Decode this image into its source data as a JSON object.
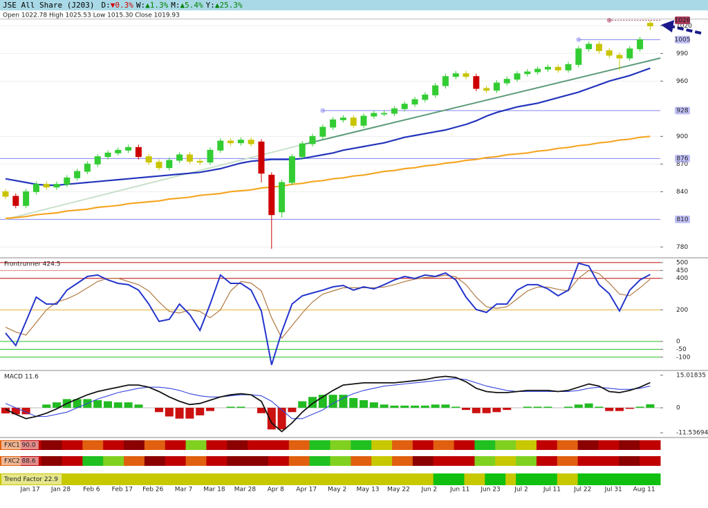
{
  "header": {
    "title": "JSE All Share (J203)",
    "stats": [
      {
        "label": "D:",
        "change": "▼0.3%",
        "color": "#d00000"
      },
      {
        "label": "W:",
        "change": "▲1.3%",
        "color": "#008000"
      },
      {
        "label": "M:",
        "change": "▲5.4%",
        "color": "#008000"
      },
      {
        "label": "Y:",
        "change": "▲25.3%",
        "color": "#008000"
      }
    ]
  },
  "chart_data": [
    {
      "type": "candlestick",
      "info": "Open 1022.78 High 1025.53 Low 1015.30 Close 1019.93",
      "categories": [
        null,
        null,
        "Jan 17",
        null,
        null,
        "Jan 28",
        null,
        null,
        "Feb 6",
        null,
        null,
        "Feb 17",
        null,
        null,
        "Feb 26",
        null,
        null,
        "Mar 7",
        null,
        null,
        "Mar 18",
        null,
        null,
        "Mar 28",
        null,
        null,
        "Apr 8",
        null,
        null,
        "Apr 17",
        null,
        null,
        "May 2",
        null,
        null,
        "May 13",
        null,
        null,
        "May 22",
        null,
        null,
        "Jun 2",
        null,
        null,
        "Jun 11",
        null,
        null,
        "Jun 23",
        null,
        null,
        "Jul 2",
        null,
        null,
        "Jul 11",
        null,
        null,
        "Jul 22",
        null,
        null,
        "Jul 31",
        null,
        null,
        "Aug 11",
        null
      ],
      "open": [
        840,
        835,
        825,
        840,
        848,
        845,
        848,
        855,
        862,
        870,
        878,
        882,
        885,
        888,
        878,
        872,
        866,
        874,
        880,
        873,
        872,
        885,
        895,
        893,
        896,
        894,
        858,
        818,
        850,
        878,
        892,
        900,
        910,
        918,
        920,
        912,
        922,
        925,
        925,
        930,
        935,
        940,
        945,
        955,
        965,
        968,
        965,
        952,
        950,
        958,
        962,
        968,
        970,
        973,
        975,
        972,
        978,
        995,
        1000,
        993,
        988,
        985,
        995,
        1022.78
      ],
      "high": [
        843,
        838,
        843,
        851,
        851,
        851,
        858,
        865,
        873,
        881,
        885,
        888,
        891,
        891,
        881,
        875,
        877,
        883,
        883,
        876,
        888,
        898,
        898,
        899,
        899,
        897,
        861,
        853,
        881,
        895,
        903,
        913,
        921,
        923,
        923,
        925,
        928,
        928,
        933,
        938,
        943,
        948,
        958,
        968,
        971,
        971,
        968,
        955,
        961,
        965,
        971,
        973,
        976,
        978,
        978,
        981,
        998,
        1003,
        1003,
        996,
        991,
        998,
        1008,
        1025.53
      ],
      "low": [
        832,
        822,
        822,
        837,
        842,
        842,
        845,
        852,
        859,
        867,
        875,
        879,
        882,
        875,
        869,
        863,
        863,
        871,
        870,
        869,
        869,
        882,
        890,
        890,
        889,
        850,
        778,
        812,
        847,
        875,
        889,
        897,
        907,
        915,
        909,
        909,
        919,
        922,
        922,
        927,
        932,
        937,
        942,
        952,
        962,
        962,
        949,
        947,
        947,
        955,
        959,
        965,
        967,
        970,
        969,
        969,
        975,
        992,
        990,
        985,
        972,
        982,
        992,
        1015.3
      ],
      "close": [
        835,
        825,
        840,
        848,
        845,
        848,
        855,
        862,
        870,
        878,
        882,
        885,
        888,
        878,
        872,
        866,
        874,
        880,
        873,
        872,
        885,
        895,
        893,
        896,
        892,
        860,
        815,
        850,
        878,
        892,
        900,
        910,
        918,
        920,
        912,
        922,
        925,
        925,
        930,
        935,
        940,
        945,
        955,
        965,
        968,
        965,
        952,
        950,
        958,
        962,
        968,
        970,
        973,
        975,
        972,
        978,
        995,
        1000,
        993,
        988,
        985,
        995,
        1005,
        1019.93
      ],
      "up_color": "#33cc33",
      "down_color": "#cc0000",
      "weak_color": "#c8c400",
      "series": [
        {
          "color": "#2233bb",
          "values": [
            854,
            852,
            850,
            848,
            847,
            847,
            848,
            849,
            850,
            851,
            852,
            853,
            854,
            855,
            856,
            857,
            858,
            859,
            860,
            861,
            863,
            865,
            868,
            871,
            873,
            874,
            875,
            875,
            875,
            876,
            878,
            880,
            882,
            885,
            887,
            889,
            891,
            893,
            896,
            899,
            901,
            903,
            905,
            907,
            910,
            913,
            917,
            922,
            926,
            929,
            932,
            934,
            936,
            939,
            942,
            945,
            948,
            952,
            956,
            960,
            963,
            966,
            970,
            974
          ]
        },
        {
          "color": "#f5a623",
          "values": [
            811,
            812,
            813,
            815,
            816,
            817,
            819,
            820,
            821,
            823,
            824,
            825,
            827,
            828,
            829,
            830,
            832,
            833,
            834,
            836,
            837,
            838,
            840,
            841,
            842,
            844,
            845,
            846,
            848,
            849,
            851,
            852,
            854,
            855,
            857,
            858,
            860,
            862,
            863,
            865,
            866,
            868,
            869,
            871,
            872,
            874,
            875,
            877,
            878,
            880,
            881,
            882,
            884,
            885,
            887,
            888,
            890,
            891,
            893,
            894,
            896,
            897,
            899,
            900
          ]
        }
      ],
      "trendlines": [
        {
          "x": [
            0,
            29
          ],
          "y": [
            810,
            891
          ],
          "color": "#c8e0c8"
        },
        {
          "x": [
            29,
            64
          ],
          "y": [
            891,
            985
          ],
          "color": "#5a9a78"
        }
      ],
      "levels": [
        {
          "value": 1026,
          "start": 59,
          "color": "#a8385a",
          "label_color": "#ffffff"
        },
        {
          "value": 1005,
          "start": 56,
          "color": "#8080f0",
          "label_color": "#202080"
        },
        {
          "value": 928,
          "start": 31,
          "color": "#8080f0",
          "label_color": "#202080"
        },
        {
          "value": 876,
          "color": "#8080f0",
          "label_color": "#202080"
        },
        {
          "value": 810,
          "color": "#8080f0",
          "label_color": "#202080"
        }
      ],
      "ylim": [
        769,
        1027
      ],
      "yticks": [
        780,
        840,
        870,
        900,
        960,
        990,
        1020
      ],
      "grid": true
    },
    {
      "type": "line",
      "title": "Frontrunner 424.5",
      "ylim": [
        -180,
        526
      ],
      "yticks": [
        500,
        450,
        400,
        200,
        0,
        -50,
        -100
      ],
      "tick_colors": [
        "#c00000",
        "#e08080",
        "#c00000",
        "#e0b030",
        "#20c020",
        "#20c020",
        "#20c020"
      ],
      "series": [
        {
          "color": "#b07840",
          "values": [
            90,
            60,
            40,
            120,
            200,
            250,
            270,
            300,
            340,
            380,
            400,
            400,
            380,
            360,
            320,
            250,
            190,
            180,
            200,
            190,
            150,
            200,
            320,
            380,
            370,
            320,
            150,
            20,
            100,
            180,
            250,
            300,
            320,
            340,
            340,
            340,
            340,
            345,
            360,
            380,
            395,
            405,
            410,
            420,
            410,
            360,
            280,
            220,
            210,
            220,
            270,
            320,
            345,
            345,
            330,
            320,
            400,
            450,
            430,
            370,
            300,
            290,
            340,
            395
          ]
        },
        {
          "color": "#2233cc",
          "values": [
            53,
            -26,
            127,
            281,
            237,
            237,
            325,
            368,
            412,
            421,
            390,
            368,
            360,
            325,
            237,
            127,
            140,
            237,
            171,
            70,
            237,
            421,
            368,
            368,
            325,
            193,
            -149,
            61,
            237,
            289,
            307,
            325,
            346,
            355,
            325,
            346,
            333,
            360,
            390,
            412,
            399,
            421,
            412,
            434,
            390,
            281,
            202,
            184,
            237,
            237,
            325,
            360,
            360,
            333,
            289,
            325,
            496,
            478,
            360,
            303,
            193,
            325,
            390,
            424.5
          ]
        }
      ]
    },
    {
      "type": "macd",
      "title": "MACD 11.6",
      "ylim": [
        -13.4,
        16.9
      ],
      "yticks": [
        15.01835,
        0,
        -11.53694
      ],
      "histogram": {
        "positive_color": "#22bb22",
        "negative_color": "#cc1111",
        "values": [
          -2.6,
          -3,
          -3,
          0,
          1.5,
          2.5,
          4,
          4,
          4,
          3.5,
          3,
          2.5,
          2.5,
          1.5,
          0,
          -2,
          -4,
          -5,
          -5,
          -3.5,
          -1.5,
          0,
          0.5,
          0.5,
          0,
          -2.5,
          -10,
          -10,
          -2,
          3,
          5,
          6,
          6,
          6,
          4.5,
          3.5,
          2.5,
          1.5,
          1,
          1,
          1,
          1,
          1.5,
          1.5,
          0.5,
          -1,
          -2.5,
          -2.5,
          -2,
          -1,
          0,
          0.5,
          0.5,
          0.5,
          0,
          0.5,
          1.5,
          2,
          0.5,
          -1.5,
          -1.5,
          -0.5,
          0.5,
          1.6
        ]
      },
      "series": [
        {
          "color": "#3344dd",
          "values": [
            2,
            0,
            -2,
            -4,
            -4,
            -3,
            -2,
            0,
            2,
            4,
            5.5,
            7,
            8,
            9,
            9.5,
            9.5,
            9,
            8,
            6.5,
            5.5,
            5,
            5,
            5.5,
            6,
            6,
            5.5,
            3,
            -1,
            -5,
            -5,
            -3,
            -1,
            2,
            4.5,
            6.5,
            8,
            9,
            10,
            10.5,
            11,
            11.5,
            12,
            12.5,
            13,
            13.5,
            13,
            11.5,
            10,
            9,
            8,
            7.5,
            7.5,
            7.5,
            7.5,
            7.5,
            7.5,
            8,
            9,
            9.5,
            9,
            8.5,
            8.5,
            9,
            10
          ]
        },
        {
          "color": "#111111",
          "values": [
            -0.6,
            -3,
            -5,
            -4,
            -2.5,
            -0.5,
            2,
            4,
            6,
            7.5,
            8.5,
            9.5,
            10.5,
            10.5,
            9.5,
            7.5,
            5,
            3,
            1.5,
            2,
            3.5,
            5,
            6,
            6.5,
            6,
            3,
            -7,
            -11,
            -7,
            -2,
            2,
            5,
            8,
            10.5,
            11,
            11.5,
            11.5,
            11.5,
            11.5,
            12,
            12.5,
            13,
            14,
            14.5,
            14,
            12,
            9,
            7.5,
            7,
            7,
            7.5,
            8,
            8,
            8,
            7.5,
            8,
            9.5,
            11,
            10,
            7.5,
            7,
            8,
            9.5,
            11.6
          ]
        }
      ]
    },
    {
      "type": "heatstrip",
      "title": "FXC1 90.0",
      "cells": [
        "#e06010",
        "#c00000",
        "#8b0000",
        "#c00000",
        "#e06010",
        "#c00000",
        "#8b0000",
        "#e06010",
        "#c00000",
        "#80d020",
        "#c00000",
        "#8b0000",
        "#c00000",
        "#c00000",
        "#e06010",
        "#20c020",
        "#80d020",
        "#20c020",
        "#c8c800",
        "#e06010",
        "#c00000",
        "#e06010",
        "#c00000",
        "#20c020",
        "#80d020",
        "#c8c800",
        "#c00000",
        "#e06010",
        "#8b0000",
        "#c00000",
        "#8b0000",
        "#c00000"
      ]
    },
    {
      "type": "heatstrip",
      "title": "FXC2 88.6",
      "cells": [
        "#e06010",
        "#c00000",
        "#8b0000",
        "#c00000",
        "#20c020",
        "#80d020",
        "#e06010",
        "#8b0000",
        "#c00000",
        "#e06010",
        "#c00000",
        "#8b0000",
        "#8b0000",
        "#c00000",
        "#e06010",
        "#20c020",
        "#80d020",
        "#e06010",
        "#c8c800",
        "#e06010",
        "#8b0000",
        "#c00000",
        "#c00000",
        "#80d020",
        "#c8c800",
        "#80d020",
        "#c00000",
        "#e06010",
        "#c00000",
        "#c00000",
        "#8b0000",
        "#c00000"
      ]
    },
    {
      "type": "heatstrip",
      "title": "Trend Factor 22.9",
      "cells": [
        "#c8c800",
        "#c8c800",
        "#c8c800",
        "#c8c800",
        "#c8c800",
        "#c8c800",
        "#c8c800",
        "#c8c800",
        "#c8c800",
        "#c8c800",
        "#c8c800",
        "#c8c800",
        "#c8c800",
        "#c8c800",
        "#c8c800",
        "#c8c800",
        "#c8c800",
        "#c8c800",
        "#c8c800",
        "#c8c800",
        "#c8c800",
        "#c8c800",
        "#c8c800",
        "#c8c800",
        "#c8c800",
        "#c8c800",
        "#c8c800",
        "#c8c800",
        "#c8c800",
        "#c8c800",
        "#c8c800",
        "#c8c800",
        "#c8c800",
        "#c8c800",
        "#c8c800",
        "#c8c800",
        "#c8c800",
        "#c8c800",
        "#c8c800",
        "#c8c800",
        "#c8c800",
        "#c8c800",
        "#10c010",
        "#10c010",
        "#10c010",
        "#c8c800",
        "#c8c800",
        "#10c010",
        "#10c010",
        "#c8c800",
        "#10c010",
        "#10c010",
        "#10c010",
        "#10c010",
        "#c8c800",
        "#c8c800",
        "#10c010",
        "#10c010",
        "#10c010",
        "#10c010",
        "#10c010",
        "#10c010",
        "#10c010",
        "#10c010"
      ]
    }
  ]
}
